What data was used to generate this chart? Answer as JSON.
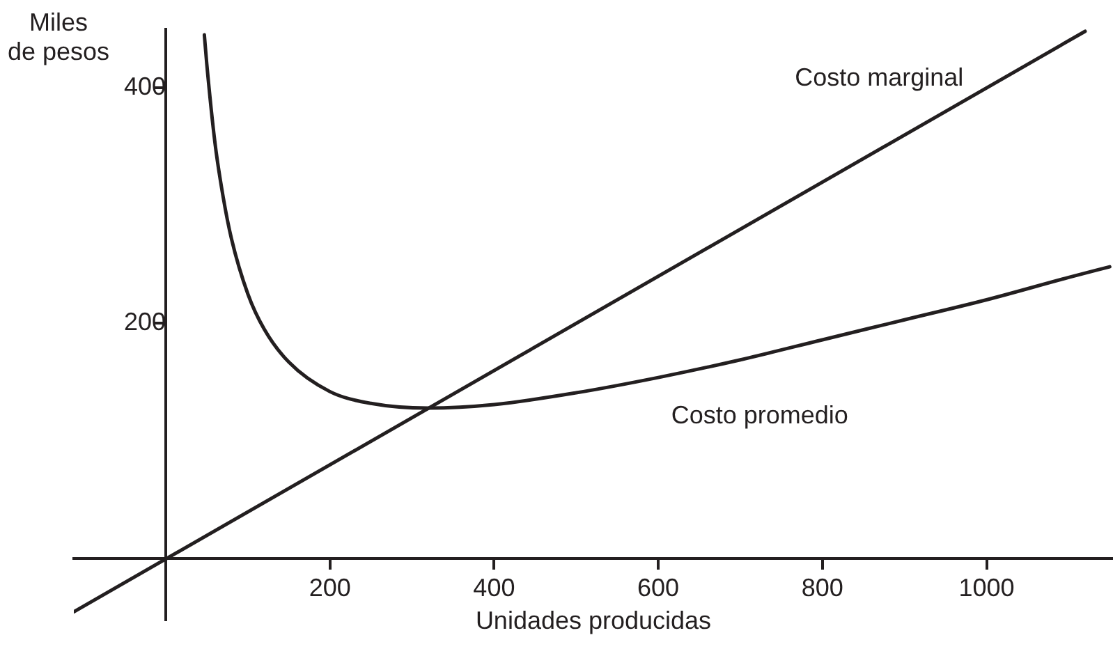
{
  "chart_data": {
    "type": "line",
    "xlabel": "Unidades producidas",
    "ylabel": "Miles de pesos",
    "xlim": [
      -112,
      1154
    ],
    "ylim": [
      -52,
      450
    ],
    "xticks": [
      200,
      400,
      600,
      800,
      1000
    ],
    "yticks": [
      200,
      400
    ],
    "grid": false,
    "legend": false,
    "marker": "none",
    "line_style": "solid",
    "series": [
      {
        "name": "Costo marginal",
        "color": "#231f20",
        "x": [
          -112,
          1120
        ],
        "values": [
          -45,
          448
        ]
      },
      {
        "name": "Costo promedio",
        "color": "#231f20",
        "x": [
          47,
          50,
          60,
          70,
          80,
          100,
          120,
          150,
          200,
          250,
          320,
          400,
          500,
          600,
          700,
          800,
          900,
          1000,
          1100,
          1150
        ],
        "values": [
          445,
          420,
          353,
          307,
          272,
          225,
          195,
          167,
          142,
          132,
          128,
          131,
          141,
          154,
          169,
          186,
          203,
          220,
          239,
          248
        ]
      }
    ]
  }
}
